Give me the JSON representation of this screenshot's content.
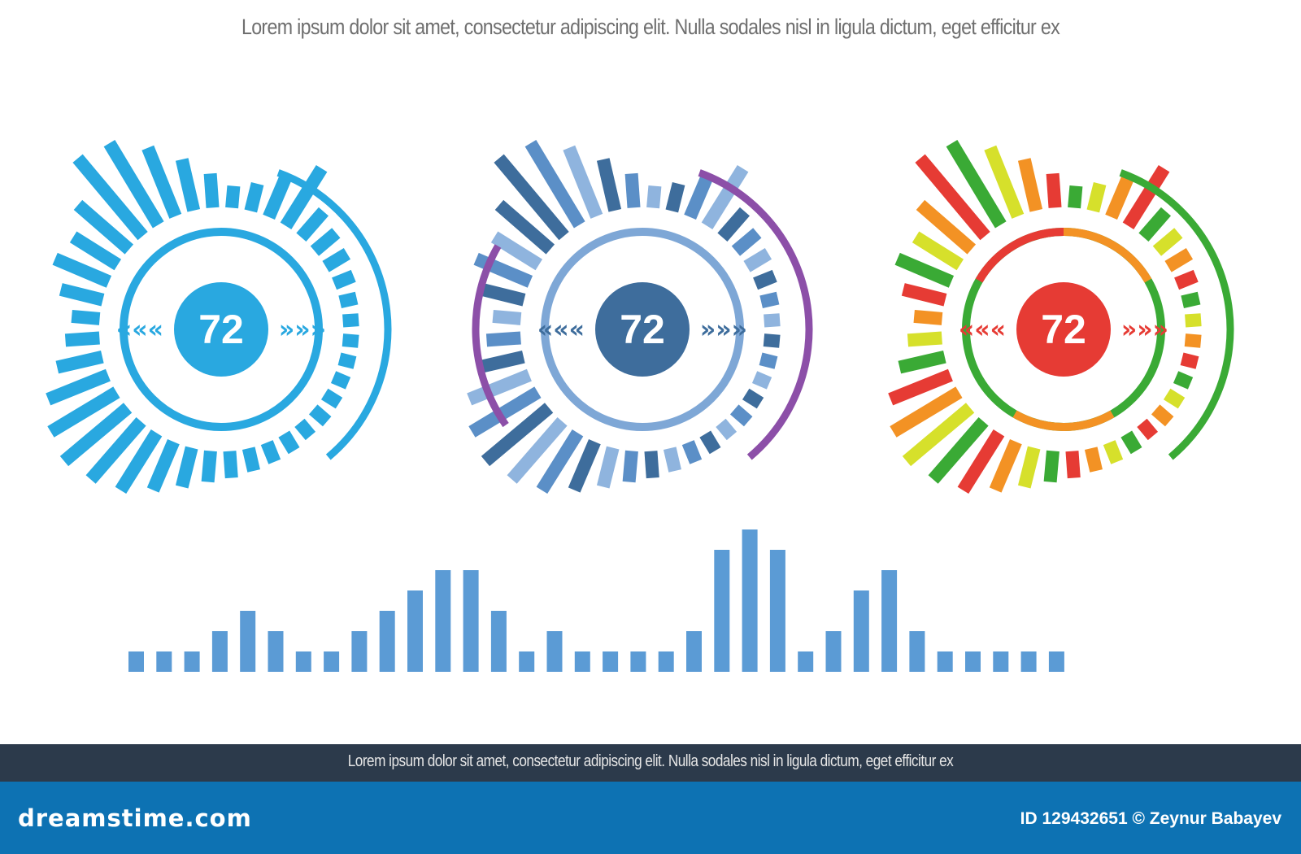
{
  "header": {
    "caption": "Lorem ipsum dolor sit amet, consectetur adipiscing elit. Nulla sodales nisl in ligula dictum, eget efficitur ex"
  },
  "gauges": [
    {
      "value": "72",
      "arrow_left": "«««",
      "arrow_right": "»»»",
      "palette": "cyan",
      "center_color": "#29a8e0",
      "bar_color": "#29a8e0"
    },
    {
      "value": "72",
      "arrow_left": "«««",
      "arrow_right": "»»»",
      "palette": "blue",
      "center_color": "#3e6d9c",
      "bar_color": "#5b8fc7",
      "accent_color": "#8c4fa8"
    },
    {
      "value": "72",
      "arrow_left": "«««",
      "arrow_right": "»»»",
      "palette": "multicolor",
      "center_color": "#e63b34",
      "bar_colors": [
        "#e63b34",
        "#f39224",
        "#d6e02b",
        "#3aaa35"
      ]
    }
  ],
  "bar_strip": {
    "color": "#5b9bd5",
    "levels": [
      1,
      1,
      1,
      2,
      3,
      2,
      1,
      1,
      2,
      3,
      4,
      5,
      5,
      3,
      1,
      2,
      1,
      1,
      1,
      1,
      2,
      6,
      7,
      6,
      1,
      2,
      4,
      5,
      2,
      1,
      1,
      1,
      1,
      1
    ]
  },
  "footer": {
    "caption": "Lorem ipsum dolor sit amet, consectetur adipiscing elit. Nulla sodales nisl in ligula dictum, eget efficitur ex",
    "brand": "dreamstime.com",
    "credit": "ID 129432651 © Zeynur Babayev"
  }
}
